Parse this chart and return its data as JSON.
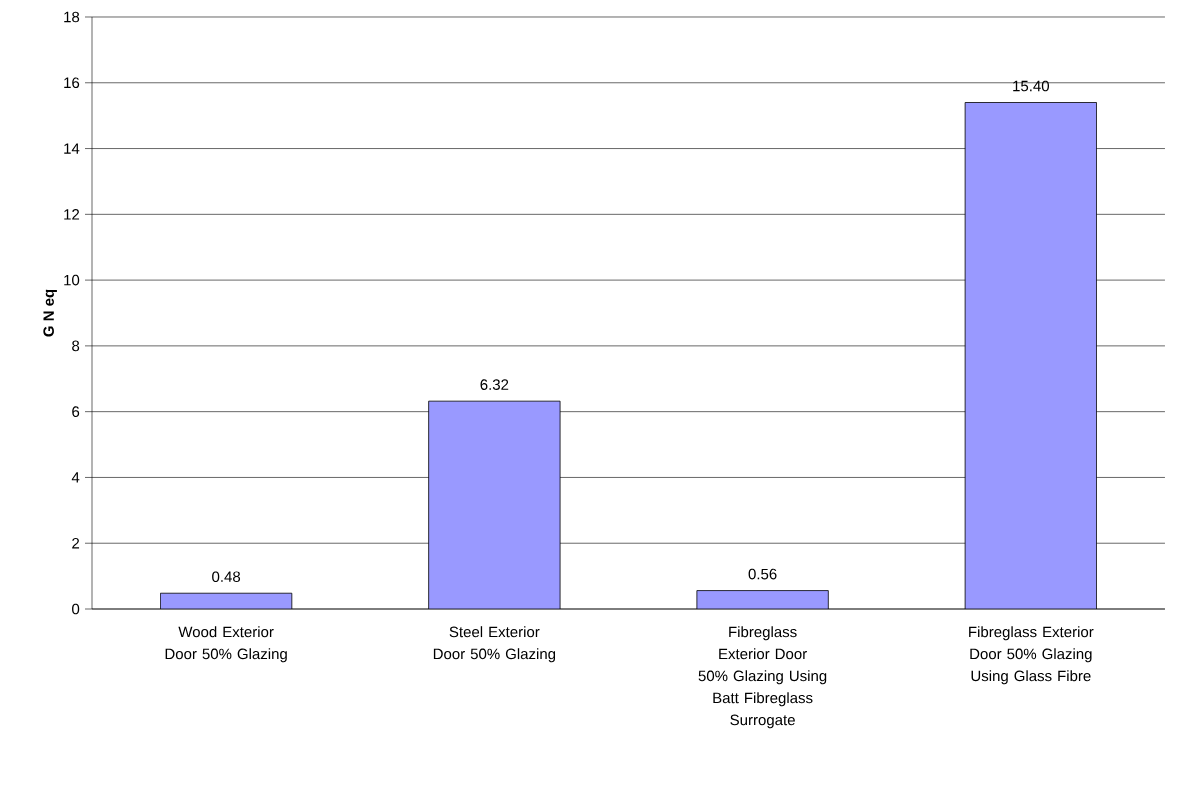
{
  "chart_data": {
    "type": "bar",
    "ylabel": "G N eq",
    "categories": [
      "Wood Exterior Door 50% Glazing",
      "Steel Exterior Door 50% Glazing",
      "Fibreglass Exterior Door 50% Glazing Using Batt Fibreglass Surrogate",
      "Fibreglass Exterior Door 50% Glazing Using Glass Fibre"
    ],
    "values": [
      0.48,
      6.32,
      0.56,
      15.4
    ],
    "value_labels": [
      "0.48",
      "6.32",
      "0.56",
      "15.40"
    ],
    "color": "#9999ff",
    "ylim": [
      0,
      18
    ],
    "yticks": [
      0,
      2,
      4,
      6,
      8,
      10,
      12,
      14,
      16,
      18
    ],
    "grid": "y"
  }
}
